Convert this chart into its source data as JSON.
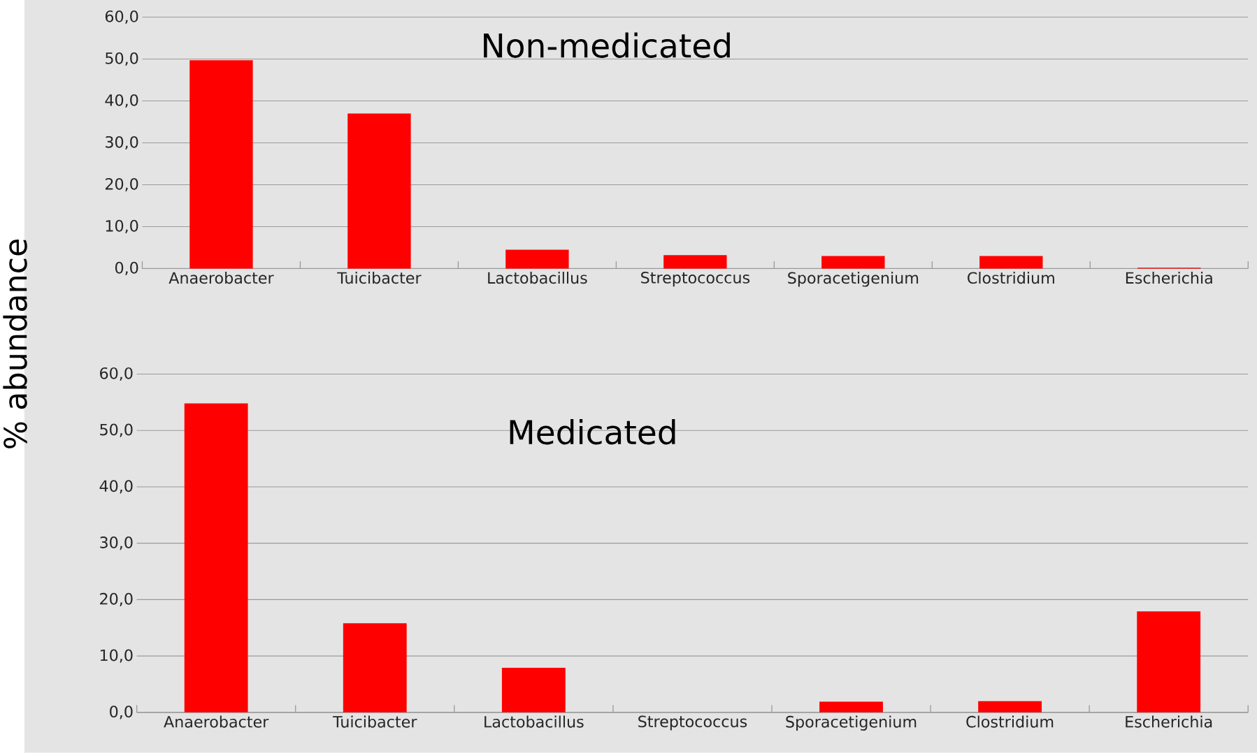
{
  "chart_data": [
    {
      "type": "bar",
      "title": "Non-medicated",
      "ylabel": "% abundance",
      "categories": [
        "Anaerobacter",
        "Tuicibacter",
        "Lactobacillus",
        "Streptococcus",
        "Sporacetigenium",
        "Clostridium",
        "Escherichia"
      ],
      "values": [
        49.7,
        37.0,
        4.5,
        3.2,
        3.0,
        3.0,
        0.2
      ],
      "color": "#ff0000",
      "ylim": [
        0,
        60
      ],
      "yticks": [
        {
          "value": 0,
          "label": "0,0"
        },
        {
          "value": 10,
          "label": "10,0"
        },
        {
          "value": 20,
          "label": "20,0"
        },
        {
          "value": 30,
          "label": "30,0"
        },
        {
          "value": 40,
          "label": "40,0"
        },
        {
          "value": 50,
          "label": "50,0"
        },
        {
          "value": 60,
          "label": "60,0"
        }
      ],
      "grid": "y"
    },
    {
      "type": "bar",
      "title": "Medicated",
      "categories": [
        "Anaerobacter",
        "Tuicibacter",
        "Lactobacillus",
        "Streptococcus",
        "Sporacetigenium",
        "Clostridium",
        "Escherichia"
      ],
      "values": [
        54.8,
        15.8,
        7.9,
        0,
        1.9,
        2.0,
        17.9
      ],
      "color": "#ff0000",
      "ylim": [
        0,
        60
      ],
      "yticks": [
        {
          "value": 0,
          "label": "0,0"
        },
        {
          "value": 10,
          "label": "10,0"
        },
        {
          "value": 20,
          "label": "20,0"
        },
        {
          "value": 30,
          "label": "30,0"
        },
        {
          "value": 40,
          "label": "40,0"
        },
        {
          "value": 50,
          "label": "50,0"
        },
        {
          "value": 60,
          "label": "60,0"
        }
      ],
      "grid": "y"
    }
  ]
}
